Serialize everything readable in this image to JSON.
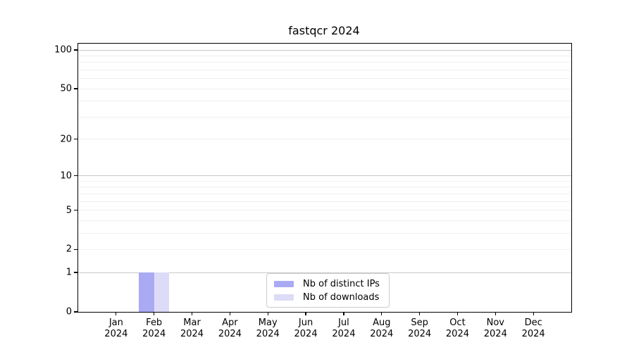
{
  "chart_data": {
    "type": "bar",
    "title": "fastqcr 2024",
    "categories": [
      "Jan",
      "Feb",
      "Mar",
      "Apr",
      "May",
      "Jun",
      "Jul",
      "Aug",
      "Sep",
      "Oct",
      "Nov",
      "Dec"
    ],
    "x_tick_year": "2024",
    "series": [
      {
        "name": "Nb of distinct IPs",
        "color": "#aaaaf4",
        "values": [
          0,
          1,
          0,
          0,
          0,
          0,
          0,
          0,
          0,
          0,
          0,
          0
        ]
      },
      {
        "name": "Nb of downloads",
        "color": "#dcdcf8",
        "values": [
          0,
          1,
          0,
          0,
          0,
          0,
          0,
          0,
          0,
          0,
          0,
          0
        ]
      }
    ],
    "yscale": "log1p",
    "ylim": [
      0,
      112
    ],
    "xlabel": "",
    "ylabel": "",
    "y_tick_labels": [
      0,
      1,
      2,
      5,
      10,
      20,
      50,
      100
    ],
    "y_major_gridlines": [
      1,
      10,
      100
    ],
    "y_minor_gridlines": [
      2,
      3,
      4,
      5,
      6,
      7,
      8,
      9,
      20,
      30,
      40,
      50,
      60,
      70,
      80,
      90
    ],
    "grid": "on",
    "legend_position": "lower center",
    "colors": {
      "major_grid": "#c9c9c9",
      "minor_grid": "#f0f0f0",
      "axis": "#000000",
      "text": "#000000",
      "legend_border": "#cccccc",
      "plot_background": "#ffffff"
    }
  }
}
